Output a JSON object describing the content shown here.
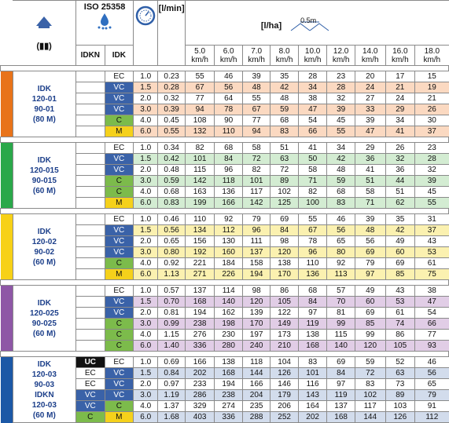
{
  "header": {
    "nozzle_label": "(▮▮)",
    "iso_label": "ISO 25358",
    "flow_unit": "[l/min]",
    "rate_unit": "[l/ha]",
    "spacing_label": "0.5m",
    "col_idkn": "IDKN",
    "col_idk": "IDK",
    "pressure_unit_icon": "gauge-icon",
    "drop_icon": "droplets-icon",
    "nozzle_icon": "nozzle-spray-icon"
  },
  "speeds": [
    {
      "v": "5.0",
      "u": "km/h"
    },
    {
      "v": "6.0",
      "u": "km/h"
    },
    {
      "v": "7.0",
      "u": "km/h"
    },
    {
      "v": "8.0",
      "u": "km/h"
    },
    {
      "v": "10.0",
      "u": "km/h"
    },
    {
      "v": "12.0",
      "u": "km/h"
    },
    {
      "v": "14.0",
      "u": "km/h"
    },
    {
      "v": "16.0",
      "u": "km/h"
    },
    {
      "v": "18.0",
      "u": "km/h"
    }
  ],
  "colors": {
    "stripes": [
      "#e8731a",
      "#2aa84a",
      "#f7d117",
      "#8e57a6",
      "#1c58a6"
    ],
    "tints": [
      "#fbd9c1",
      "#d3ecd2",
      "#fbf1b0",
      "#e1cde6",
      "#d2dcec"
    ],
    "vc": "#3a62a8",
    "c": "#7cbb4b",
    "m": "#f5d11b",
    "uc": "#111111"
  },
  "groups": [
    {
      "name_lines": [
        "IDK",
        "120-01",
        "90-01",
        "(80 M)"
      ],
      "rows": [
        {
          "idkn": "",
          "idk": "EC",
          "p": "1.0",
          "f": "0.23",
          "v": [
            "55",
            "46",
            "39",
            "35",
            "28",
            "23",
            "20",
            "17",
            "15"
          ]
        },
        {
          "idkn": "",
          "idk": "VC",
          "p": "1.5",
          "f": "0.28",
          "v": [
            "67",
            "56",
            "48",
            "42",
            "34",
            "28",
            "24",
            "21",
            "19"
          ]
        },
        {
          "idkn": "",
          "idk": "VC",
          "p": "2.0",
          "f": "0.32",
          "v": [
            "77",
            "64",
            "55",
            "48",
            "38",
            "32",
            "27",
            "24",
            "21"
          ]
        },
        {
          "idkn": "",
          "idk": "VC",
          "p": "3.0",
          "f": "0.39",
          "v": [
            "94",
            "78",
            "67",
            "59",
            "47",
            "39",
            "33",
            "29",
            "26"
          ]
        },
        {
          "idkn": "",
          "idk": "C",
          "p": "4.0",
          "f": "0.45",
          "v": [
            "108",
            "90",
            "77",
            "68",
            "54",
            "45",
            "39",
            "34",
            "30"
          ]
        },
        {
          "idkn": "",
          "idk": "M",
          "p": "6.0",
          "f": "0.55",
          "v": [
            "132",
            "110",
            "94",
            "83",
            "66",
            "55",
            "47",
            "41",
            "37"
          ]
        }
      ]
    },
    {
      "name_lines": [
        "IDK",
        "120-015",
        "90-015",
        "(60 M)"
      ],
      "rows": [
        {
          "idkn": "",
          "idk": "EC",
          "p": "1.0",
          "f": "0.34",
          "v": [
            "82",
            "68",
            "58",
            "51",
            "41",
            "34",
            "29",
            "26",
            "23"
          ]
        },
        {
          "idkn": "",
          "idk": "VC",
          "p": "1.5",
          "f": "0.42",
          "v": [
            "101",
            "84",
            "72",
            "63",
            "50",
            "42",
            "36",
            "32",
            "28"
          ]
        },
        {
          "idkn": "",
          "idk": "VC",
          "p": "2.0",
          "f": "0.48",
          "v": [
            "115",
            "96",
            "82",
            "72",
            "58",
            "48",
            "41",
            "36",
            "32"
          ]
        },
        {
          "idkn": "",
          "idk": "C",
          "p": "3.0",
          "f": "0.59",
          "v": [
            "142",
            "118",
            "101",
            "89",
            "71",
            "59",
            "51",
            "44",
            "39"
          ]
        },
        {
          "idkn": "",
          "idk": "C",
          "p": "4.0",
          "f": "0.68",
          "v": [
            "163",
            "136",
            "117",
            "102",
            "82",
            "68",
            "58",
            "51",
            "45"
          ]
        },
        {
          "idkn": "",
          "idk": "M",
          "p": "6.0",
          "f": "0.83",
          "v": [
            "199",
            "166",
            "142",
            "125",
            "100",
            "83",
            "71",
            "62",
            "55"
          ]
        }
      ]
    },
    {
      "name_lines": [
        "IDK",
        "120-02",
        "90-02",
        "(60 M)"
      ],
      "rows": [
        {
          "idkn": "",
          "idk": "EC",
          "p": "1.0",
          "f": "0.46",
          "v": [
            "110",
            "92",
            "79",
            "69",
            "55",
            "46",
            "39",
            "35",
            "31"
          ]
        },
        {
          "idkn": "",
          "idk": "VC",
          "p": "1.5",
          "f": "0.56",
          "v": [
            "134",
            "112",
            "96",
            "84",
            "67",
            "56",
            "48",
            "42",
            "37"
          ]
        },
        {
          "idkn": "",
          "idk": "VC",
          "p": "2.0",
          "f": "0.65",
          "v": [
            "156",
            "130",
            "111",
            "98",
            "78",
            "65",
            "56",
            "49",
            "43"
          ]
        },
        {
          "idkn": "",
          "idk": "VC",
          "p": "3.0",
          "f": "0.80",
          "v": [
            "192",
            "160",
            "137",
            "120",
            "96",
            "80",
            "69",
            "60",
            "53"
          ]
        },
        {
          "idkn": "",
          "idk": "C",
          "p": "4.0",
          "f": "0.92",
          "v": [
            "221",
            "184",
            "158",
            "138",
            "110",
            "92",
            "79",
            "69",
            "61"
          ]
        },
        {
          "idkn": "",
          "idk": "M",
          "p": "6.0",
          "f": "1.13",
          "v": [
            "271",
            "226",
            "194",
            "170",
            "136",
            "113",
            "97",
            "85",
            "75"
          ]
        }
      ]
    },
    {
      "name_lines": [
        "IDK",
        "120-025",
        "90-025",
        "(60 M)"
      ],
      "rows": [
        {
          "idkn": "",
          "idk": "EC",
          "p": "1.0",
          "f": "0.57",
          "v": [
            "137",
            "114",
            "98",
            "86",
            "68",
            "57",
            "49",
            "43",
            "38"
          ]
        },
        {
          "idkn": "",
          "idk": "VC",
          "p": "1.5",
          "f": "0.70",
          "v": [
            "168",
            "140",
            "120",
            "105",
            "84",
            "70",
            "60",
            "53",
            "47"
          ]
        },
        {
          "idkn": "",
          "idk": "VC",
          "p": "2.0",
          "f": "0.81",
          "v": [
            "194",
            "162",
            "139",
            "122",
            "97",
            "81",
            "69",
            "61",
            "54"
          ]
        },
        {
          "idkn": "",
          "idk": "C",
          "p": "3.0",
          "f": "0.99",
          "v": [
            "238",
            "198",
            "170",
            "149",
            "119",
            "99",
            "85",
            "74",
            "66"
          ]
        },
        {
          "idkn": "",
          "idk": "C",
          "p": "4.0",
          "f": "1.15",
          "v": [
            "276",
            "230",
            "197",
            "173",
            "138",
            "115",
            "99",
            "86",
            "77"
          ]
        },
        {
          "idkn": "",
          "idk": "C",
          "p": "6.0",
          "f": "1.40",
          "v": [
            "336",
            "280",
            "240",
            "210",
            "168",
            "140",
            "120",
            "105",
            "93"
          ]
        }
      ]
    },
    {
      "name_lines": [
        "IDK",
        "120-03",
        "90-03",
        "IDKN",
        "120-03",
        "(60 M)"
      ],
      "rows": [
        {
          "idkn": "UC",
          "idk": "EC",
          "p": "1.0",
          "f": "0.69",
          "v": [
            "166",
            "138",
            "118",
            "104",
            "83",
            "69",
            "59",
            "52",
            "46"
          ]
        },
        {
          "idkn": "EC",
          "idk": "VC",
          "p": "1.5",
          "f": "0.84",
          "v": [
            "202",
            "168",
            "144",
            "126",
            "101",
            "84",
            "72",
            "63",
            "56"
          ]
        },
        {
          "idkn": "EC",
          "idk": "VC",
          "p": "2.0",
          "f": "0.97",
          "v": [
            "233",
            "194",
            "166",
            "146",
            "116",
            "97",
            "83",
            "73",
            "65"
          ]
        },
        {
          "idkn": "VC",
          "idk": "VC",
          "p": "3.0",
          "f": "1.19",
          "v": [
            "286",
            "238",
            "204",
            "179",
            "143",
            "119",
            "102",
            "89",
            "79"
          ]
        },
        {
          "idkn": "VC",
          "idk": "C",
          "p": "4.0",
          "f": "1.37",
          "v": [
            "329",
            "274",
            "235",
            "206",
            "164",
            "137",
            "117",
            "103",
            "91"
          ]
        },
        {
          "idkn": "C",
          "idk": "M",
          "p": "6.0",
          "f": "1.68",
          "v": [
            "403",
            "336",
            "288",
            "252",
            "202",
            "168",
            "144",
            "126",
            "112"
          ]
        }
      ]
    }
  ]
}
